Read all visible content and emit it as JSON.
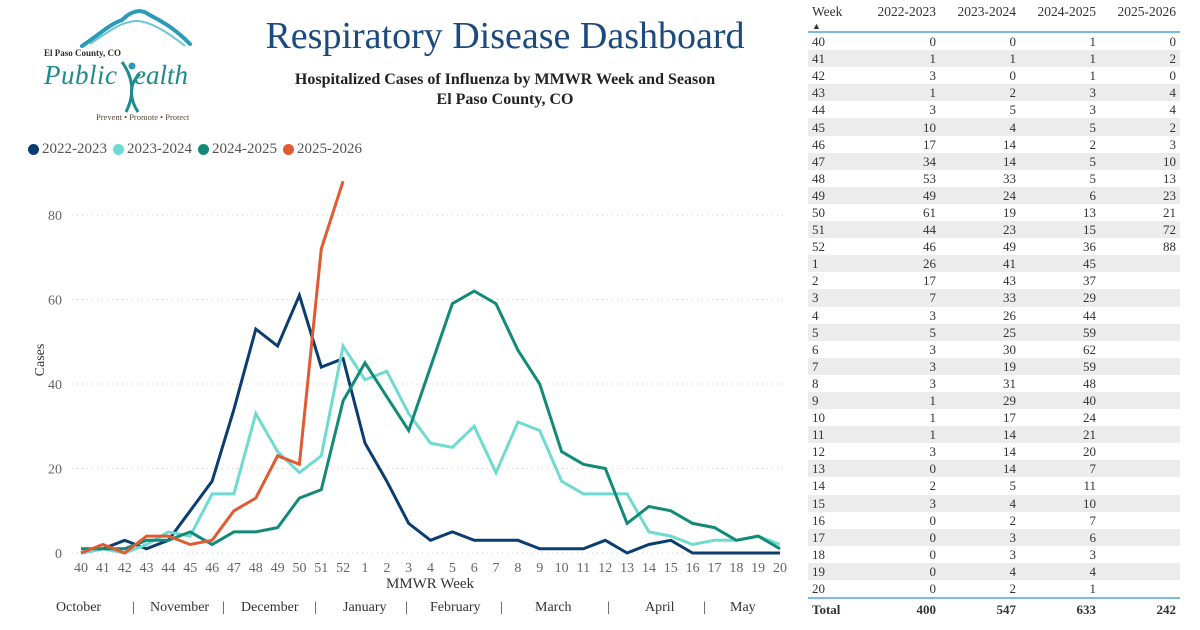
{
  "logo": {
    "county": "El Paso County, CO",
    "public": "Public",
    "health": "ealth",
    "tagline": "Prevent • Promote • Protect"
  },
  "header": {
    "title": "Respiratory Disease Dashboard",
    "subtitle_line1": "Hospitalized Cases of Influenza by MMWR Week and Season",
    "subtitle_line2": "El Paso County, CO"
  },
  "colors": {
    "2022-2023": "#0c3d70",
    "2023-2024": "#6fdbd0",
    "2024-2025": "#138a78",
    "2025-2026": "#e05a32",
    "title": "#1b4a7e",
    "table_rule": "#7ab8e6"
  },
  "chart_data": {
    "type": "line",
    "title": "Hospitalized Cases of Influenza by MMWR Week and Season",
    "xlabel": "MMWR Week",
    "ylabel": "Cases",
    "ylim": [
      0,
      88
    ],
    "yticks": [
      0,
      20,
      40,
      60,
      80
    ],
    "grid": true,
    "legend_position": "top-left",
    "x": [
      "40",
      "41",
      "42",
      "43",
      "44",
      "45",
      "46",
      "47",
      "48",
      "49",
      "50",
      "51",
      "52",
      "1",
      "2",
      "3",
      "4",
      "5",
      "6",
      "7",
      "8",
      "9",
      "10",
      "11",
      "12",
      "13",
      "14",
      "15",
      "16",
      "17",
      "18",
      "19",
      "20"
    ],
    "months": [
      "October",
      "November",
      "December",
      "January",
      "February",
      "March",
      "April",
      "May"
    ],
    "series": [
      {
        "name": "2022-2023",
        "values": [
          0,
          1,
          3,
          1,
          3,
          10,
          17,
          34,
          53,
          49,
          61,
          44,
          46,
          26,
          17,
          7,
          3,
          5,
          3,
          3,
          3,
          1,
          1,
          1,
          3,
          0,
          2,
          3,
          0,
          0,
          0,
          0,
          0
        ]
      },
      {
        "name": "2023-2024",
        "values": [
          0,
          1,
          0,
          2,
          5,
          4,
          14,
          14,
          33,
          24,
          19,
          23,
          49,
          41,
          43,
          33,
          26,
          25,
          30,
          19,
          31,
          29,
          17,
          14,
          14,
          14,
          5,
          4,
          2,
          3,
          3,
          4,
          2
        ]
      },
      {
        "name": "2024-2025",
        "values": [
          1,
          1,
          1,
          3,
          3,
          5,
          2,
          5,
          5,
          6,
          13,
          15,
          36,
          45,
          37,
          29,
          44,
          59,
          62,
          59,
          48,
          40,
          24,
          21,
          20,
          7,
          11,
          10,
          7,
          6,
          3,
          4,
          1
        ]
      },
      {
        "name": "2025-2026",
        "values": [
          0,
          2,
          0,
          4,
          4,
          2,
          3,
          10,
          13,
          23,
          21,
          72,
          88
        ]
      }
    ]
  },
  "table": {
    "sort_icon": "▲",
    "headers": [
      "Week",
      "2022-2023",
      "2023-2024",
      "2024-2025",
      "2025-2026"
    ],
    "rows": [
      [
        "40",
        "0",
        "0",
        "1",
        "0"
      ],
      [
        "41",
        "1",
        "1",
        "1",
        "2"
      ],
      [
        "42",
        "3",
        "0",
        "1",
        "0"
      ],
      [
        "43",
        "1",
        "2",
        "3",
        "4"
      ],
      [
        "44",
        "3",
        "5",
        "3",
        "4"
      ],
      [
        "45",
        "10",
        "4",
        "5",
        "2"
      ],
      [
        "46",
        "17",
        "14",
        "2",
        "3"
      ],
      [
        "47",
        "34",
        "14",
        "5",
        "10"
      ],
      [
        "48",
        "53",
        "33",
        "5",
        "13"
      ],
      [
        "49",
        "49",
        "24",
        "6",
        "23"
      ],
      [
        "50",
        "61",
        "19",
        "13",
        "21"
      ],
      [
        "51",
        "44",
        "23",
        "15",
        "72"
      ],
      [
        "52",
        "46",
        "49",
        "36",
        "88"
      ],
      [
        "1",
        "26",
        "41",
        "45",
        ""
      ],
      [
        "2",
        "17",
        "43",
        "37",
        ""
      ],
      [
        "3",
        "7",
        "33",
        "29",
        ""
      ],
      [
        "4",
        "3",
        "26",
        "44",
        ""
      ],
      [
        "5",
        "5",
        "25",
        "59",
        ""
      ],
      [
        "6",
        "3",
        "30",
        "62",
        ""
      ],
      [
        "7",
        "3",
        "19",
        "59",
        ""
      ],
      [
        "8",
        "3",
        "31",
        "48",
        ""
      ],
      [
        "9",
        "1",
        "29",
        "40",
        ""
      ],
      [
        "10",
        "1",
        "17",
        "24",
        ""
      ],
      [
        "11",
        "1",
        "14",
        "21",
        ""
      ],
      [
        "12",
        "3",
        "14",
        "20",
        ""
      ],
      [
        "13",
        "0",
        "14",
        "7",
        ""
      ],
      [
        "14",
        "2",
        "5",
        "11",
        ""
      ],
      [
        "15",
        "3",
        "4",
        "10",
        ""
      ],
      [
        "16",
        "0",
        "2",
        "7",
        ""
      ],
      [
        "17",
        "0",
        "3",
        "6",
        ""
      ],
      [
        "18",
        "0",
        "3",
        "3",
        ""
      ],
      [
        "19",
        "0",
        "4",
        "4",
        ""
      ],
      [
        "20",
        "0",
        "2",
        "1",
        ""
      ]
    ],
    "total": [
      "Total",
      "400",
      "547",
      "633",
      "242"
    ]
  }
}
